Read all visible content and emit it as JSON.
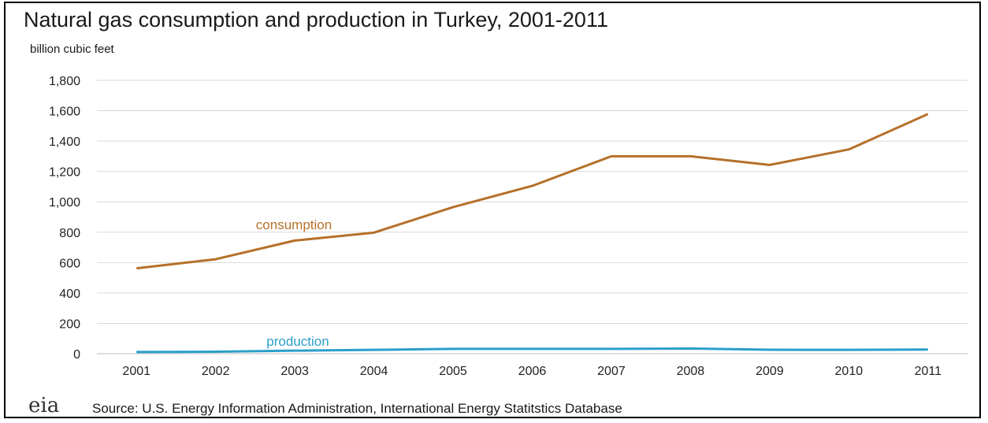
{
  "title": "Natural gas consumption and production in Turkey, 2001-2011",
  "unit_label": "billion cubic feet",
  "source": "Source: U.S. Energy Information Administration, International  Energy Statitstics Database",
  "logo_text": "eia",
  "colors": {
    "consumption": "#b5702a",
    "production": "#2a9fc9",
    "grid": "#d9d9d9"
  },
  "chart_data": {
    "type": "line",
    "x": [
      "2001",
      "2002",
      "2003",
      "2004",
      "2005",
      "2006",
      "2007",
      "2008",
      "2009",
      "2010",
      "2011"
    ],
    "ylim": [
      0,
      1800
    ],
    "yticks": [
      "0",
      "200",
      "400",
      "600",
      "800",
      "1,000",
      "1,200",
      "1,400",
      "1,600",
      "1,800"
    ],
    "ytick_values": [
      0,
      200,
      400,
      600,
      800,
      1000,
      1200,
      1400,
      1600,
      1800
    ],
    "grid": true,
    "series": [
      {
        "name": "consumption",
        "values": [
          562,
          622,
          745,
          797,
          965,
          1105,
          1300,
          1300,
          1243,
          1345,
          1578
        ]
      },
      {
        "name": "production",
        "values": [
          11,
          13,
          20,
          25,
          32,
          32,
          32,
          34,
          26,
          25,
          27
        ]
      }
    ]
  }
}
